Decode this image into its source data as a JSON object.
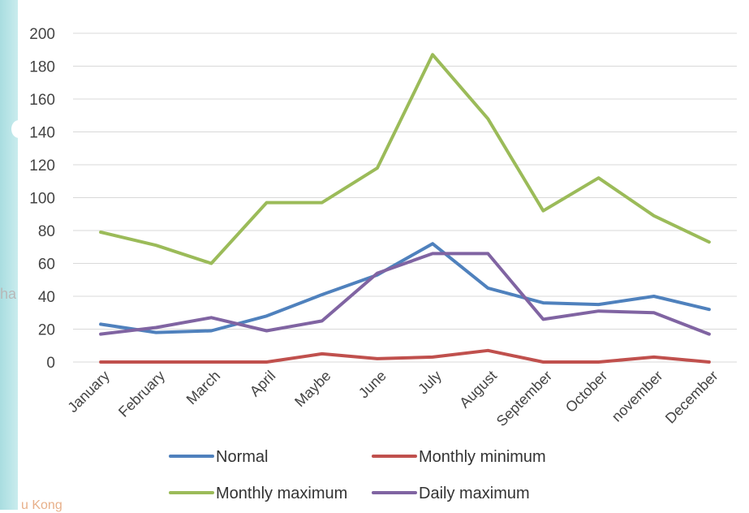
{
  "background": {
    "left_fragment_text": "ha",
    "bottom_fragment_text": "u Kong",
    "strip_color": "#a9dde0"
  },
  "chart_data": {
    "type": "line",
    "categories": [
      "January",
      "February",
      "March",
      "April",
      "Maybe",
      "June",
      "July",
      "August",
      "September",
      "October",
      "november",
      "December"
    ],
    "ylim": [
      0,
      200
    ],
    "yticks": [
      0,
      20,
      40,
      60,
      80,
      100,
      120,
      140,
      160,
      180,
      200
    ],
    "grid": true,
    "legend_position": "bottom",
    "series": [
      {
        "name": "Normal",
        "color": "#4f81bd",
        "values": [
          23,
          18,
          19,
          28,
          41,
          53,
          72,
          45,
          36,
          35,
          40,
          32
        ]
      },
      {
        "name": "Monthly minimum",
        "color": "#c0504d",
        "values": [
          0,
          0,
          0,
          0,
          5,
          2,
          3,
          7,
          0,
          0,
          3,
          0
        ]
      },
      {
        "name": "Monthly maximum",
        "color": "#9bbb59",
        "values": [
          79,
          71,
          60,
          97,
          97,
          118,
          187,
          148,
          92,
          112,
          89,
          73
        ]
      },
      {
        "name": "Daily maximum",
        "color": "#8064a2",
        "values": [
          17,
          21,
          27,
          19,
          25,
          54,
          66,
          66,
          26,
          31,
          30,
          17
        ]
      }
    ]
  }
}
